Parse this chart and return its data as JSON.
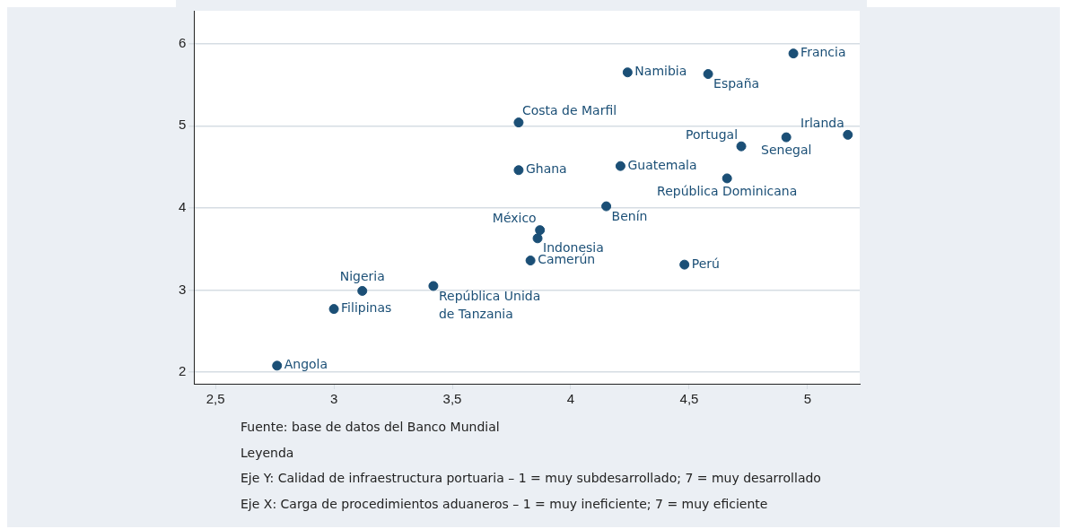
{
  "chart_data": {
    "type": "scatter",
    "x": [
      2.76,
      3.0,
      3.12,
      3.42,
      3.83,
      3.86,
      3.87,
      3.78,
      3.78,
      4.15,
      4.21,
      4.24,
      4.58,
      4.48,
      4.66,
      4.72,
      4.91,
      4.94,
      5.17
    ],
    "values": [
      2.08,
      2.77,
      2.99,
      3.05,
      3.36,
      3.63,
      3.73,
      4.46,
      5.04,
      4.02,
      4.51,
      5.65,
      5.63,
      3.31,
      4.36,
      4.75,
      4.86,
      5.88,
      4.89
    ],
    "color": "#1b4f76",
    "marker": "circle",
    "xlim": [
      2.41,
      5.22
    ],
    "xticks": [
      {
        "value": 2.5,
        "label": "2,5"
      },
      3,
      {
        "value": 3.5,
        "label": "3,5"
      },
      4,
      {
        "value": 4.5,
        "label": "4,5"
      },
      5
    ],
    "ylim": [
      1.86,
      6.4
    ],
    "yticks": [
      2,
      3,
      4,
      5,
      6
    ],
    "grid": "y",
    "legend": false,
    "annotations": [
      {
        "text": "Angola",
        "x": 2.76,
        "y": 2.08
      },
      {
        "text": "Filipinas",
        "x": 3.0,
        "y": 2.77
      },
      {
        "text": "Nigeria",
        "x": 3.12,
        "y": 2.99
      },
      {
        "text": "República Unida de Tanzania",
        "x": 3.42,
        "y": 3.05
      },
      {
        "text": "Camerún",
        "x": 3.83,
        "y": 3.36
      },
      {
        "text": "Indonesia",
        "x": 3.86,
        "y": 3.63
      },
      {
        "text": "México",
        "x": 3.87,
        "y": 3.73
      },
      {
        "text": "Ghana",
        "x": 3.78,
        "y": 4.46
      },
      {
        "text": "Costa de Marfil",
        "x": 3.78,
        "y": 5.04
      },
      {
        "text": "Benín",
        "x": 4.15,
        "y": 4.02
      },
      {
        "text": "Guatemala",
        "x": 4.21,
        "y": 4.51
      },
      {
        "text": "Namibia",
        "x": 4.24,
        "y": 5.65
      },
      {
        "text": "España",
        "x": 4.58,
        "y": 5.63
      },
      {
        "text": "Perú",
        "x": 4.48,
        "y": 3.31
      },
      {
        "text": "República Dominicana",
        "x": 4.66,
        "y": 4.36
      },
      {
        "text": "Portugal",
        "x": 4.72,
        "y": 4.75
      },
      {
        "text": "Senegal",
        "x": 4.91,
        "y": 4.86
      },
      {
        "text": "Francia",
        "x": 4.94,
        "y": 5.88
      },
      {
        "text": "Irlanda",
        "x": 5.17,
        "y": 4.89
      },
      "Fuente: base de datos del Banco Mundial",
      "Leyenda",
      "Eje Y: Calidad de infraestructura portuaria – 1 = muy subdesarrollado; 7 = muy desarrollado",
      "Eje X: Carga de procedimientos aduaneros – 1 = muy ineficiente; 7 = muy eficiente"
    ]
  }
}
